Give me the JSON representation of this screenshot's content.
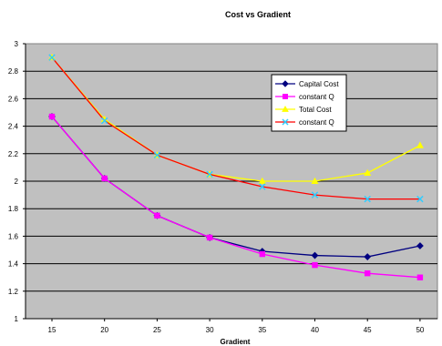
{
  "chart_data": {
    "type": "line",
    "title": "Cost   vs   Gradient",
    "xlabel": "Gradient",
    "ylabel": "",
    "categories": [
      "15",
      "20",
      "25",
      "30",
      "35",
      "40",
      "45",
      "50"
    ],
    "ylim": [
      1,
      3
    ],
    "ytick_step": 0.2,
    "yticks": [
      "1",
      "1.2",
      "1.4",
      "1.6",
      "1.8",
      "2",
      "2.2",
      "2.4",
      "2.6",
      "2.8",
      "3"
    ],
    "grid": true,
    "legend_position": "right",
    "plot_background": "#c0c0c0",
    "series": [
      {
        "name": "Capital Cost",
        "color": "#000080",
        "line_color": "#000080",
        "marker": "diamond",
        "marker_color": "#000080",
        "values": [
          2.47,
          2.02,
          1.75,
          1.59,
          1.49,
          1.46,
          1.45,
          1.53
        ]
      },
      {
        "name": "constant Q",
        "color": "#ff00ff",
        "line_color": "#ff00ff",
        "marker": "square",
        "marker_color": "#ff00ff",
        "values": [
          2.47,
          2.02,
          1.75,
          1.59,
          1.47,
          1.39,
          1.33,
          1.3
        ]
      },
      {
        "name": "Total  Cost",
        "color": "#ffff00",
        "line_color": "#ffff00",
        "marker": "triangle",
        "marker_color": "#ffff00",
        "values": [
          2.9,
          2.45,
          2.19,
          2.05,
          2.0,
          2.0,
          2.06,
          2.26
        ]
      },
      {
        "name": "constant Q",
        "color": "#33ccff",
        "line_color": "#ff0000",
        "marker": "x",
        "marker_color": "#33ccff",
        "values": [
          2.9,
          2.44,
          2.19,
          2.05,
          1.96,
          1.9,
          1.87,
          1.87
        ]
      }
    ]
  }
}
